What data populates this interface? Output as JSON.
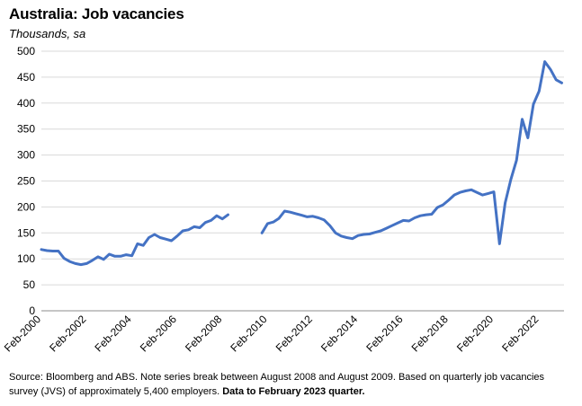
{
  "title": "Australia: Job vacancies",
  "subtitle": "Thousands, sa",
  "source_note": "Source: Bloomberg and ABS.  Note series break between August 2008 and August 2009. Based on quarterly job vacancies survey (JVS) of approximately 5,400 employers.",
  "source_note_bold": "Data to February 2023 quarter.",
  "chart_data": {
    "type": "line",
    "title": "Australia: Job vacancies",
    "subtitle": "Thousands, sa",
    "xlabel": "",
    "ylabel": "",
    "ylim": [
      0,
      500
    ],
    "yticks": [
      0,
      50,
      100,
      150,
      200,
      250,
      300,
      350,
      400,
      450,
      500
    ],
    "xlim": [
      2000.0,
      2023.1
    ],
    "xticks": [
      {
        "label": "Feb-2000",
        "x": 2000.0
      },
      {
        "label": "Feb-2002",
        "x": 2002.0
      },
      {
        "label": "Feb-2004",
        "x": 2004.0
      },
      {
        "label": "Feb-2006",
        "x": 2006.0
      },
      {
        "label": "Feb-2008",
        "x": 2008.0
      },
      {
        "label": "Feb-2010",
        "x": 2010.0
      },
      {
        "label": "Feb-2012",
        "x": 2012.0
      },
      {
        "label": "Feb-2014",
        "x": 2014.0
      },
      {
        "label": "Feb-2016",
        "x": 2016.0
      },
      {
        "label": "Feb-2018",
        "x": 2018.0
      },
      {
        "label": "Feb-2020",
        "x": 2020.0
      },
      {
        "label": "Feb-2022",
        "x": 2022.0
      }
    ],
    "grid": true,
    "legend": "none",
    "line_color": "#4472C4",
    "series": [
      {
        "segments": [
          [
            [
              2000.0,
              118
            ],
            [
              2000.25,
              116
            ],
            [
              2000.5,
              115
            ],
            [
              2000.75,
              115
            ],
            [
              2001.0,
              101
            ],
            [
              2001.25,
              95
            ],
            [
              2001.5,
              91
            ],
            [
              2001.75,
              89
            ],
            [
              2002.0,
              91
            ],
            [
              2002.25,
              97
            ],
            [
              2002.5,
              104
            ],
            [
              2002.75,
              99
            ],
            [
              2003.0,
              109
            ],
            [
              2003.25,
              105
            ],
            [
              2003.5,
              105
            ],
            [
              2003.75,
              108
            ],
            [
              2004.0,
              106
            ],
            [
              2004.25,
              129
            ],
            [
              2004.5,
              126
            ],
            [
              2004.75,
              141
            ],
            [
              2005.0,
              147
            ],
            [
              2005.25,
              141
            ],
            [
              2005.5,
              138
            ],
            [
              2005.75,
              135
            ],
            [
              2006.0,
              144
            ],
            [
              2006.25,
              154
            ],
            [
              2006.5,
              156
            ],
            [
              2006.75,
              162
            ],
            [
              2007.0,
              160
            ],
            [
              2007.25,
              170
            ],
            [
              2007.5,
              174
            ],
            [
              2007.75,
              183
            ],
            [
              2008.0,
              177
            ],
            [
              2008.25,
              185
            ]
          ],
          [
            [
              2009.75,
              150
            ],
            [
              2010.0,
              168
            ],
            [
              2010.25,
              171
            ],
            [
              2010.5,
              178
            ],
            [
              2010.75,
              192
            ],
            [
              2011.0,
              190
            ],
            [
              2011.25,
              187
            ],
            [
              2011.5,
              184
            ],
            [
              2011.75,
              181
            ],
            [
              2012.0,
              182
            ],
            [
              2012.25,
              179
            ],
            [
              2012.5,
              175
            ],
            [
              2012.75,
              164
            ],
            [
              2013.0,
              150
            ],
            [
              2013.25,
              144
            ],
            [
              2013.5,
              141
            ],
            [
              2013.75,
              139
            ],
            [
              2014.0,
              145
            ],
            [
              2014.25,
              147
            ],
            [
              2014.5,
              148
            ],
            [
              2014.75,
              151
            ],
            [
              2015.0,
              154
            ],
            [
              2015.25,
              159
            ],
            [
              2015.5,
              164
            ],
            [
              2015.75,
              169
            ],
            [
              2016.0,
              174
            ],
            [
              2016.25,
              173
            ],
            [
              2016.5,
              179
            ],
            [
              2016.75,
              183
            ],
            [
              2017.0,
              185
            ],
            [
              2017.25,
              186
            ],
            [
              2017.5,
              199
            ],
            [
              2017.75,
              204
            ],
            [
              2018.0,
              213
            ],
            [
              2018.25,
              223
            ],
            [
              2018.5,
              228
            ],
            [
              2018.75,
              231
            ],
            [
              2019.0,
              233
            ],
            [
              2019.25,
              228
            ],
            [
              2019.5,
              223
            ],
            [
              2019.75,
              226
            ],
            [
              2020.0,
              229
            ],
            [
              2020.25,
              129
            ],
            [
              2020.5,
              208
            ],
            [
              2020.75,
              253
            ],
            [
              2021.0,
              290
            ],
            [
              2021.25,
              369
            ],
            [
              2021.5,
              333
            ],
            [
              2021.75,
              398
            ],
            [
              2022.0,
              423
            ],
            [
              2022.25,
              480
            ],
            [
              2022.5,
              465
            ],
            [
              2022.75,
              445
            ],
            [
              2023.0,
              439
            ]
          ]
        ]
      }
    ]
  }
}
